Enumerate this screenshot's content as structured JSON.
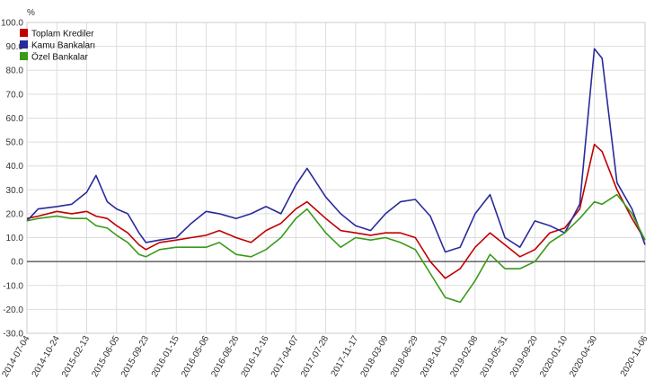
{
  "chart_data": {
    "type": "line",
    "ylabel": "%",
    "ylim": [
      -30,
      100
    ],
    "yticks": [
      100,
      90,
      80,
      70,
      60,
      50,
      40,
      30,
      20,
      10,
      0,
      -10,
      -20,
      -30
    ],
    "ytick_labels": [
      "100.0",
      "90.0",
      "80.0",
      "70.0",
      "60.0",
      "50.0",
      "40.0",
      "30.0",
      "20.0",
      "10.0",
      "0.0",
      "-10.0",
      "-20.0",
      "-30.0"
    ],
    "x_range": [
      "2014-07-04",
      "2020-11-06"
    ],
    "xtick_labels": [
      "2014-07-04",
      "2014-10-24",
      "2015-02-13",
      "2015-06-05",
      "2015-09-23",
      "2016-01-15",
      "2016-05-06",
      "2016-08-26",
      "2016-12-16",
      "2017-04-07",
      "2017-07-28",
      "2017-11-17",
      "2018-03-09",
      "2018-06-29",
      "2018-10-19",
      "2019-02-08",
      "2019-05-31",
      "2019-09-20",
      "2020-01-10",
      "2020-04-30",
      "2020-11-06"
    ],
    "grid": true,
    "legend_position": "top-left",
    "series": [
      {
        "name": "Toplam Krediler",
        "color": "#c00000",
        "x": [
          "2014-07-04",
          "2014-08-15",
          "2014-10-24",
          "2014-12-19",
          "2015-02-13",
          "2015-03-20",
          "2015-05-01",
          "2015-06-05",
          "2015-07-17",
          "2015-08-28",
          "2015-09-23",
          "2015-11-13",
          "2016-01-15",
          "2016-03-11",
          "2016-05-06",
          "2016-06-24",
          "2016-08-26",
          "2016-10-21",
          "2016-12-16",
          "2017-02-10",
          "2017-04-07",
          "2017-05-19",
          "2017-07-28",
          "2017-09-22",
          "2017-11-17",
          "2018-01-12",
          "2018-03-09",
          "2018-05-04",
          "2018-06-29",
          "2018-08-24",
          "2018-10-19",
          "2018-12-14",
          "2019-02-08",
          "2019-04-05",
          "2019-05-31",
          "2019-07-26",
          "2019-09-20",
          "2019-11-15",
          "2020-01-10",
          "2020-03-06",
          "2020-04-30",
          "2020-05-29",
          "2020-07-24",
          "2020-09-18",
          "2020-11-06"
        ],
        "values": [
          18,
          19,
          21,
          20,
          21,
          19,
          18,
          15,
          12,
          7,
          5,
          8,
          9,
          10,
          11,
          13,
          10,
          8,
          13,
          16,
          22,
          25,
          18,
          13,
          12,
          11,
          12,
          12,
          10,
          0,
          -7,
          -3,
          6,
          12,
          7,
          2,
          5,
          12,
          14,
          22,
          49,
          46,
          30,
          18,
          9
        ]
      },
      {
        "name": "Kamu Bankaları",
        "color": "#2a2a9c",
        "x": [
          "2014-07-04",
          "2014-08-15",
          "2014-10-24",
          "2014-12-19",
          "2015-02-13",
          "2015-03-20",
          "2015-05-01",
          "2015-06-05",
          "2015-07-17",
          "2015-08-28",
          "2015-09-23",
          "2015-11-13",
          "2016-01-15",
          "2016-03-11",
          "2016-05-06",
          "2016-06-24",
          "2016-08-26",
          "2016-10-21",
          "2016-12-16",
          "2017-02-10",
          "2017-04-07",
          "2017-05-19",
          "2017-07-28",
          "2017-09-22",
          "2017-11-17",
          "2018-01-12",
          "2018-03-09",
          "2018-05-04",
          "2018-06-29",
          "2018-08-24",
          "2018-10-19",
          "2018-12-14",
          "2019-02-08",
          "2019-04-05",
          "2019-05-31",
          "2019-07-26",
          "2019-09-20",
          "2019-11-15",
          "2020-01-10",
          "2020-03-06",
          "2020-04-30",
          "2020-05-29",
          "2020-07-24",
          "2020-09-18",
          "2020-11-06"
        ],
        "values": [
          17,
          22,
          23,
          24,
          29,
          36,
          25,
          22,
          20,
          12,
          8,
          9,
          10,
          16,
          21,
          20,
          18,
          20,
          23,
          20,
          32,
          39,
          27,
          20,
          15,
          13,
          20,
          25,
          26,
          19,
          4,
          6,
          20,
          28,
          10,
          6,
          17,
          15,
          12,
          24,
          89,
          85,
          33,
          22,
          7
        ]
      },
      {
        "name": "Özel Bankalar",
        "color": "#3a9a1a",
        "x": [
          "2014-07-04",
          "2014-08-15",
          "2014-10-24",
          "2014-12-19",
          "2015-02-13",
          "2015-03-20",
          "2015-05-01",
          "2015-06-05",
          "2015-07-17",
          "2015-08-28",
          "2015-09-23",
          "2015-11-13",
          "2016-01-15",
          "2016-03-11",
          "2016-05-06",
          "2016-06-24",
          "2016-08-26",
          "2016-10-21",
          "2016-12-16",
          "2017-02-10",
          "2017-04-07",
          "2017-05-19",
          "2017-07-28",
          "2017-09-22",
          "2017-11-17",
          "2018-01-12",
          "2018-03-09",
          "2018-05-04",
          "2018-06-29",
          "2018-08-24",
          "2018-10-19",
          "2018-12-14",
          "2019-02-08",
          "2019-04-05",
          "2019-05-31",
          "2019-07-26",
          "2019-09-20",
          "2019-11-15",
          "2020-01-10",
          "2020-03-06",
          "2020-04-30",
          "2020-05-29",
          "2020-07-24",
          "2020-09-18",
          "2020-11-06"
        ],
        "values": [
          17,
          18,
          19,
          18,
          18,
          15,
          14,
          11,
          8,
          3,
          2,
          5,
          6,
          6,
          6,
          8,
          3,
          2,
          5,
          10,
          18,
          22,
          12,
          6,
          10,
          9,
          10,
          8,
          5,
          -5,
          -15,
          -17,
          -8,
          3,
          -3,
          -3,
          0,
          8,
          12,
          18,
          25,
          24,
          28,
          20,
          9
        ]
      }
    ]
  }
}
